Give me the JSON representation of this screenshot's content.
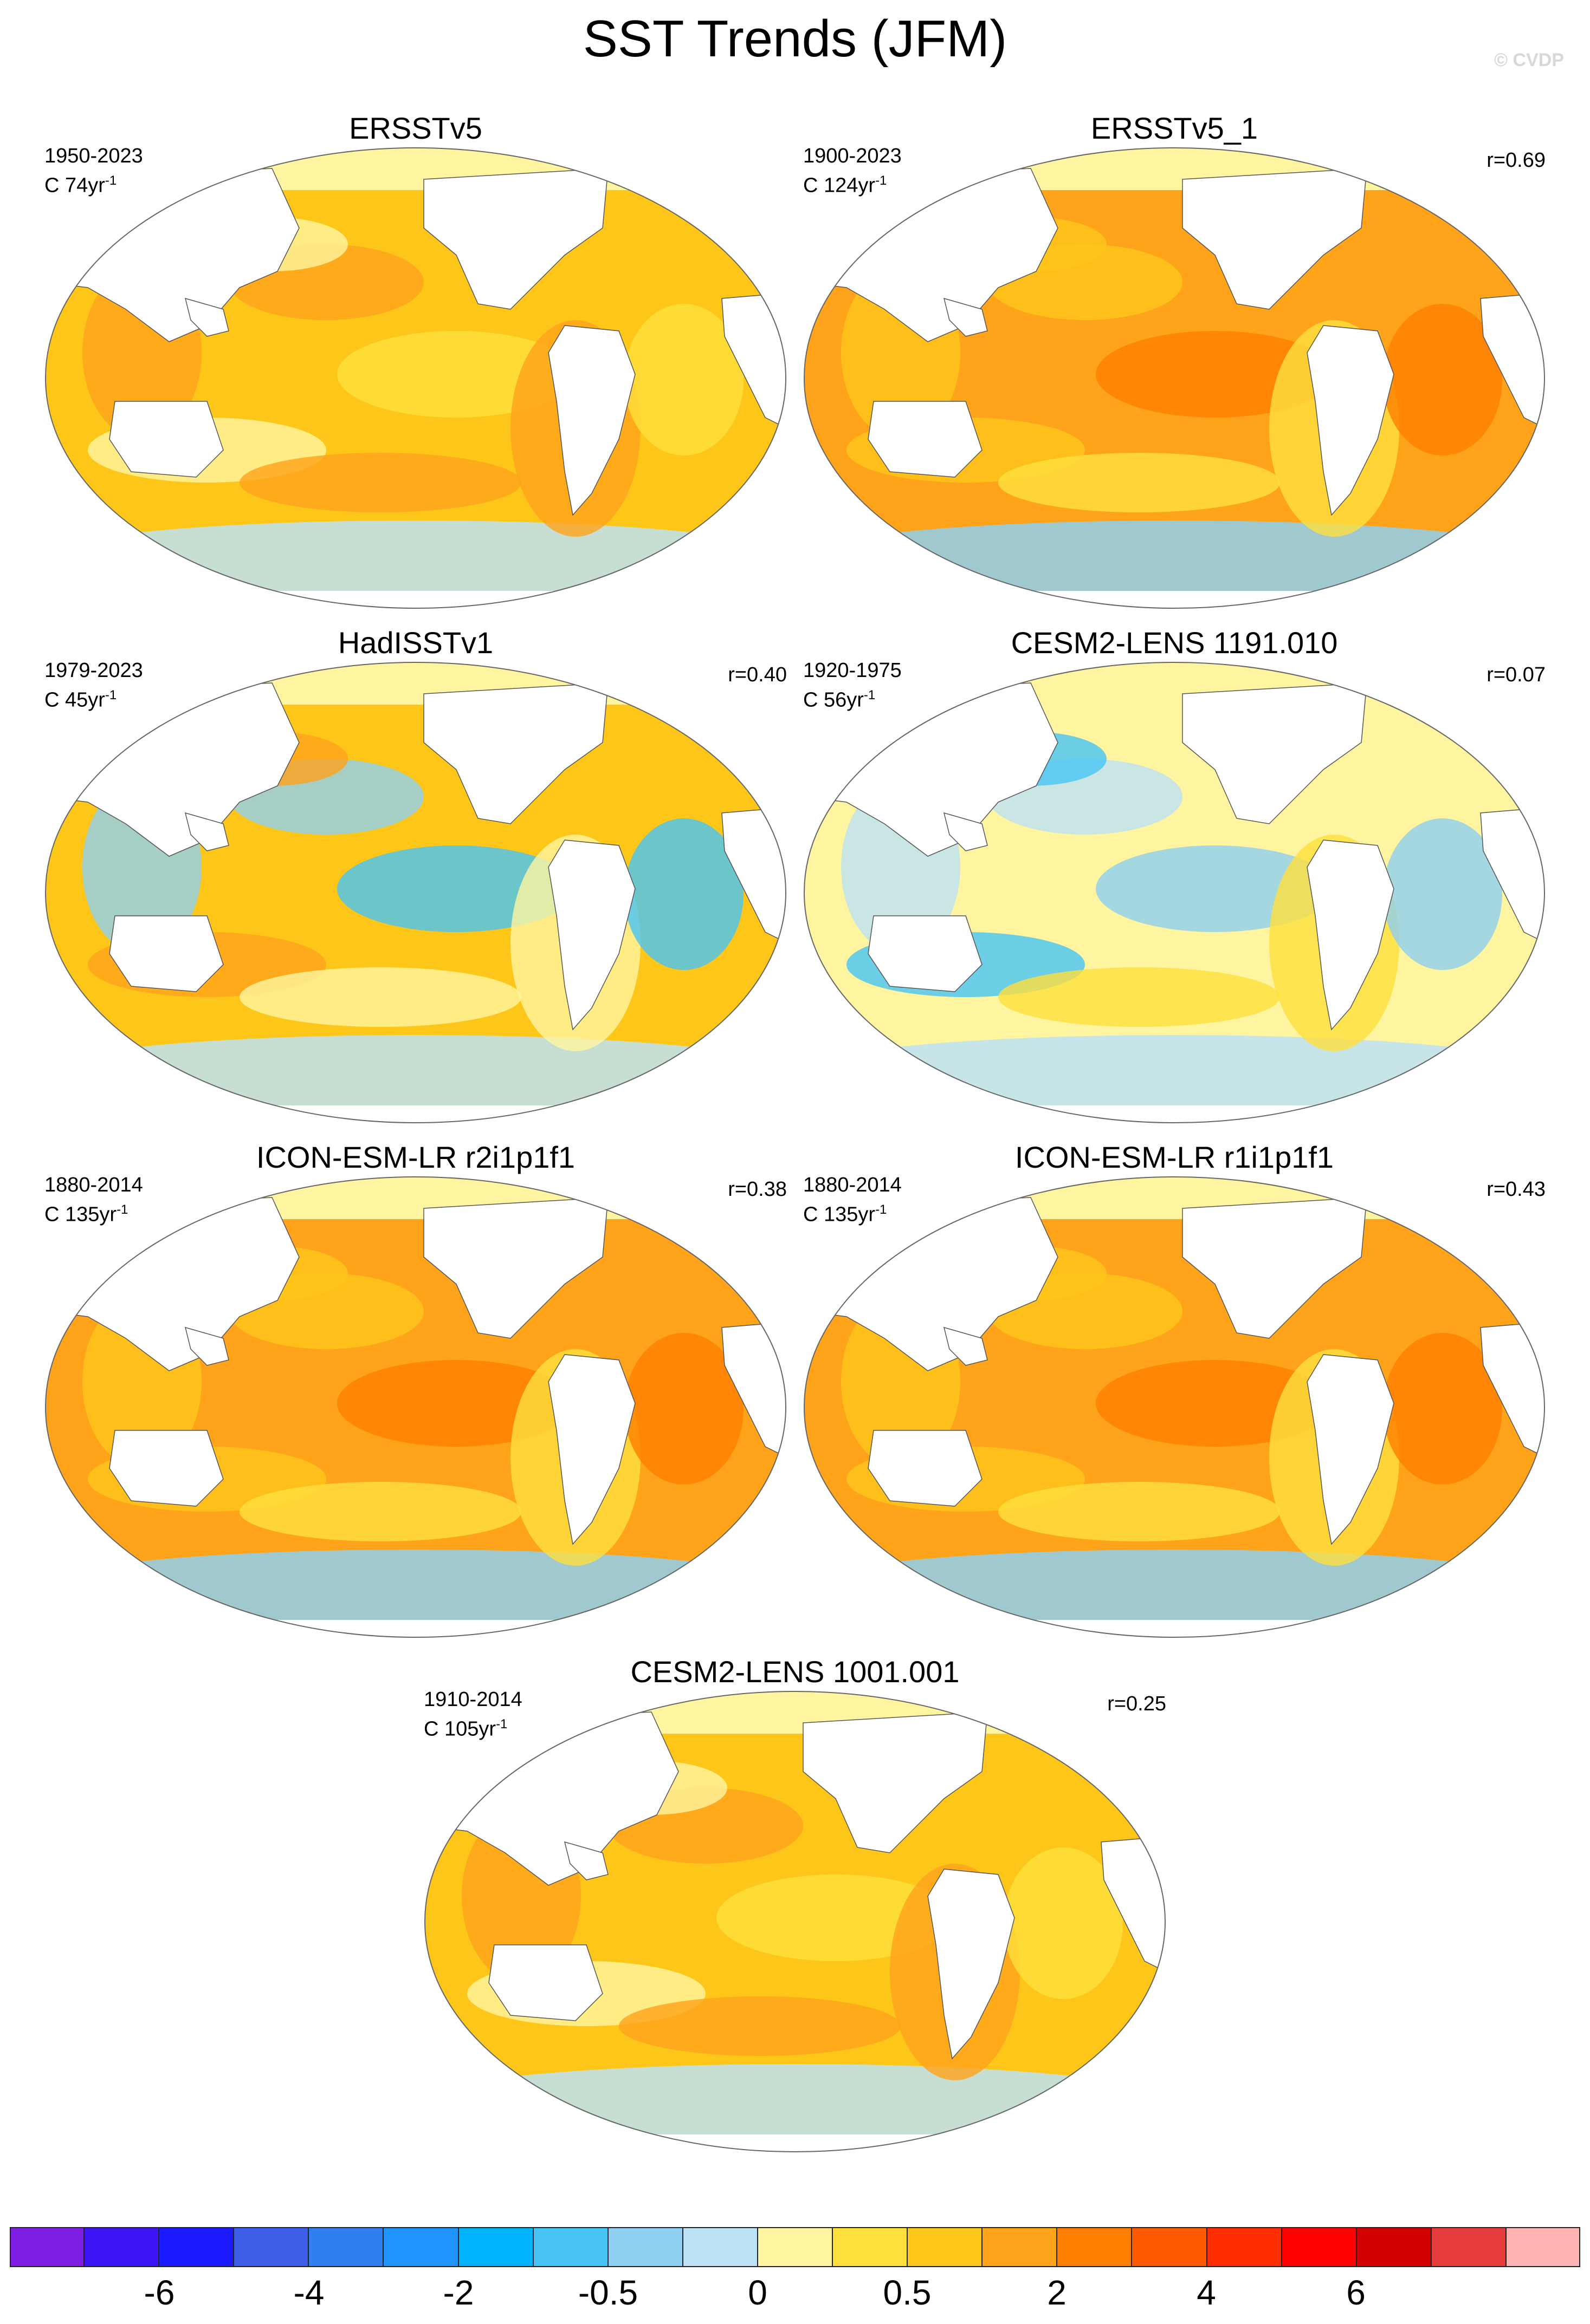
{
  "title": "SST Trends (JFM)",
  "watermark": "© CVDP",
  "panels": [
    {
      "title": "ERSSTv5",
      "years": "1950-2023",
      "units_base": "C 74yr",
      "units_exp": "-1",
      "r": "",
      "style": "warm"
    },
    {
      "title": "ERSSTv5_1",
      "years": "1900-2023",
      "units_base": "C 124yr",
      "units_exp": "-1",
      "r": "r=0.69",
      "style": "warm-strong"
    },
    {
      "title": "HadISSTv1",
      "years": "1979-2023",
      "units_base": "C 45yr",
      "units_exp": "-1",
      "r": "r=0.40",
      "style": "mixed"
    },
    {
      "title": "CESM2-LENS 1191.010",
      "years": "1920-1975",
      "units_base": "C 56yr",
      "units_exp": "-1",
      "r": "r=0.07",
      "style": "cool"
    },
    {
      "title": "ICON-ESM-LR r2i1p1f1",
      "years": "1880-2014",
      "units_base": "C 135yr",
      "units_exp": "-1",
      "r": "r=0.38",
      "style": "warm-strong"
    },
    {
      "title": "ICON-ESM-LR r1i1p1f1",
      "years": "1880-2014",
      "units_base": "C 135yr",
      "units_exp": "-1",
      "r": "r=0.43",
      "style": "warm-strong"
    },
    {
      "title": "CESM2-LENS 1001.001",
      "years": "1910-2014",
      "units_base": "C 105yr",
      "units_exp": "-1",
      "r": "r=0.25",
      "style": "warm"
    }
  ],
  "colorbar": {
    "colors": [
      "#7f1fe6",
      "#3c14f5",
      "#1a1aff",
      "#3d5ee8",
      "#2f7ff0",
      "#1f94ff",
      "#00b3ff",
      "#47c4f5",
      "#8fcff0",
      "#bde2f5",
      "#fff5a0",
      "#ffe03d",
      "#ffc61a",
      "#ffa31a",
      "#ff8000",
      "#ff5a00",
      "#ff2d00",
      "#ff0000",
      "#d40000",
      "#e63c3c",
      "#ffb3b3"
    ],
    "labels": [
      {
        "text": "-6",
        "boundary": 2
      },
      {
        "text": "-4",
        "boundary": 4
      },
      {
        "text": "-2",
        "boundary": 6
      },
      {
        "text": "-0.5",
        "boundary": 8
      },
      {
        "text": "0",
        "boundary": 10
      },
      {
        "text": "0.5",
        "boundary": 12
      },
      {
        "text": "2",
        "boundary": 14
      },
      {
        "text": "4",
        "boundary": 16
      },
      {
        "text": "6",
        "boundary": 18
      }
    ]
  }
}
